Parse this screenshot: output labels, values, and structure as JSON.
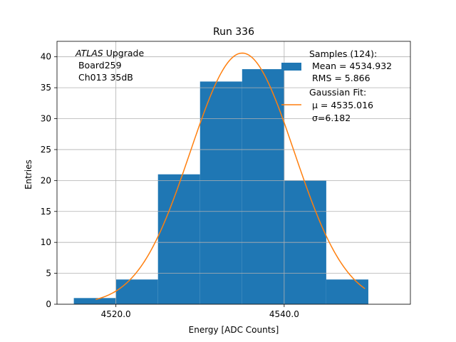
{
  "chart_data": {
    "type": "bar",
    "title": "Run 336",
    "xlabel": "Energy [ADC Counts]",
    "ylabel": "Entries",
    "xlim": [
      4513.0,
      4555.0
    ],
    "ylim": [
      0,
      42.5
    ],
    "grid": true,
    "bin_edges": [
      4515,
      4520,
      4525,
      4530,
      4535,
      4540,
      4545,
      4550
    ],
    "values": [
      1,
      4,
      21,
      36,
      38,
      20,
      4
    ],
    "xticks": [
      4520.0,
      4540.0
    ],
    "xtick_labels": [
      "4520.0",
      "4540.0"
    ],
    "yticks": [
      0,
      5,
      10,
      15,
      20,
      25,
      30,
      35,
      40
    ],
    "ytick_labels": [
      "0",
      "5",
      "10",
      "15",
      "20",
      "25",
      "30",
      "35",
      "40"
    ],
    "fit": {
      "type": "gaussian",
      "mu": 4535.016,
      "sigma": 6.182,
      "amplitude": 40.6,
      "x_range": [
        4517.6,
        4549.6
      ]
    },
    "annotation": {
      "lines": [
        {
          "italic": "ATLAS",
          "text": " Upgrade"
        },
        {
          "italic": "",
          "text": " Board259"
        },
        {
          "italic": "",
          "text": " Ch013 35dB"
        }
      ]
    },
    "legend": {
      "placement": "top-right",
      "entries": [
        {
          "series": "histogram",
          "lines": [
            "Samples (124):",
            " Mean = 4534.932",
            " RMS = 5.866"
          ]
        },
        {
          "series": "fit",
          "lines": [
            "Gaussian Fit:",
            " μ = 4535.016",
            " σ=6.182"
          ]
        }
      ]
    },
    "colors": {
      "histogram": "#1f77b4",
      "fit": "#ff7f0e",
      "grid": "#b0b0b0"
    }
  }
}
